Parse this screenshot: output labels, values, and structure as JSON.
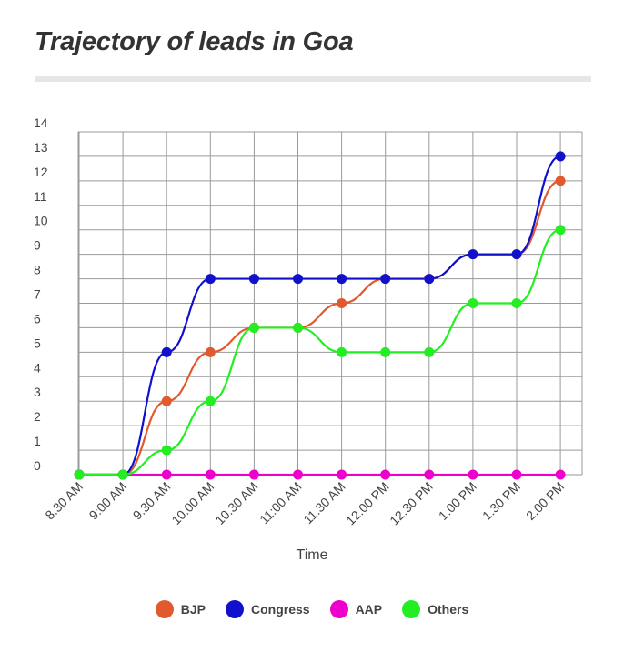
{
  "title": "Trajectory of leads in Goa",
  "chart_data": {
    "type": "line",
    "title": "Trajectory of leads in Goa",
    "xlabel": "Time",
    "ylabel": "",
    "categories": [
      "8.30 AM",
      "9:00 AM",
      "9.30 AM",
      "10.00 AM",
      "10.30 AM",
      "11:00 AM",
      "11.30 AM",
      "12.00 PM",
      "12.30 PM",
      "1.00 PM",
      "1.30 PM",
      "2.00 PM"
    ],
    "ylim": [
      0,
      14
    ],
    "yticks": [
      0,
      1,
      2,
      3,
      4,
      5,
      6,
      7,
      8,
      9,
      10,
      11,
      12,
      13,
      14
    ],
    "grid": true,
    "legend_position": "bottom",
    "series": [
      {
        "name": "BJP",
        "color": "#e05a2e",
        "values": [
          0,
          0,
          3,
          5,
          6,
          6,
          7,
          8,
          8,
          9,
          9,
          12
        ]
      },
      {
        "name": "Congress",
        "color": "#1111cc",
        "values": [
          0,
          0,
          5,
          8,
          8,
          8,
          8,
          8,
          8,
          9,
          9,
          13
        ]
      },
      {
        "name": "AAP",
        "color": "#ee00cc",
        "values": [
          0,
          0,
          0,
          0,
          0,
          0,
          0,
          0,
          0,
          0,
          0,
          0
        ]
      },
      {
        "name": "Others",
        "color": "#22ee22",
        "values": [
          0,
          0,
          1,
          3,
          6,
          6,
          5,
          5,
          5,
          7,
          7,
          10
        ]
      }
    ]
  }
}
